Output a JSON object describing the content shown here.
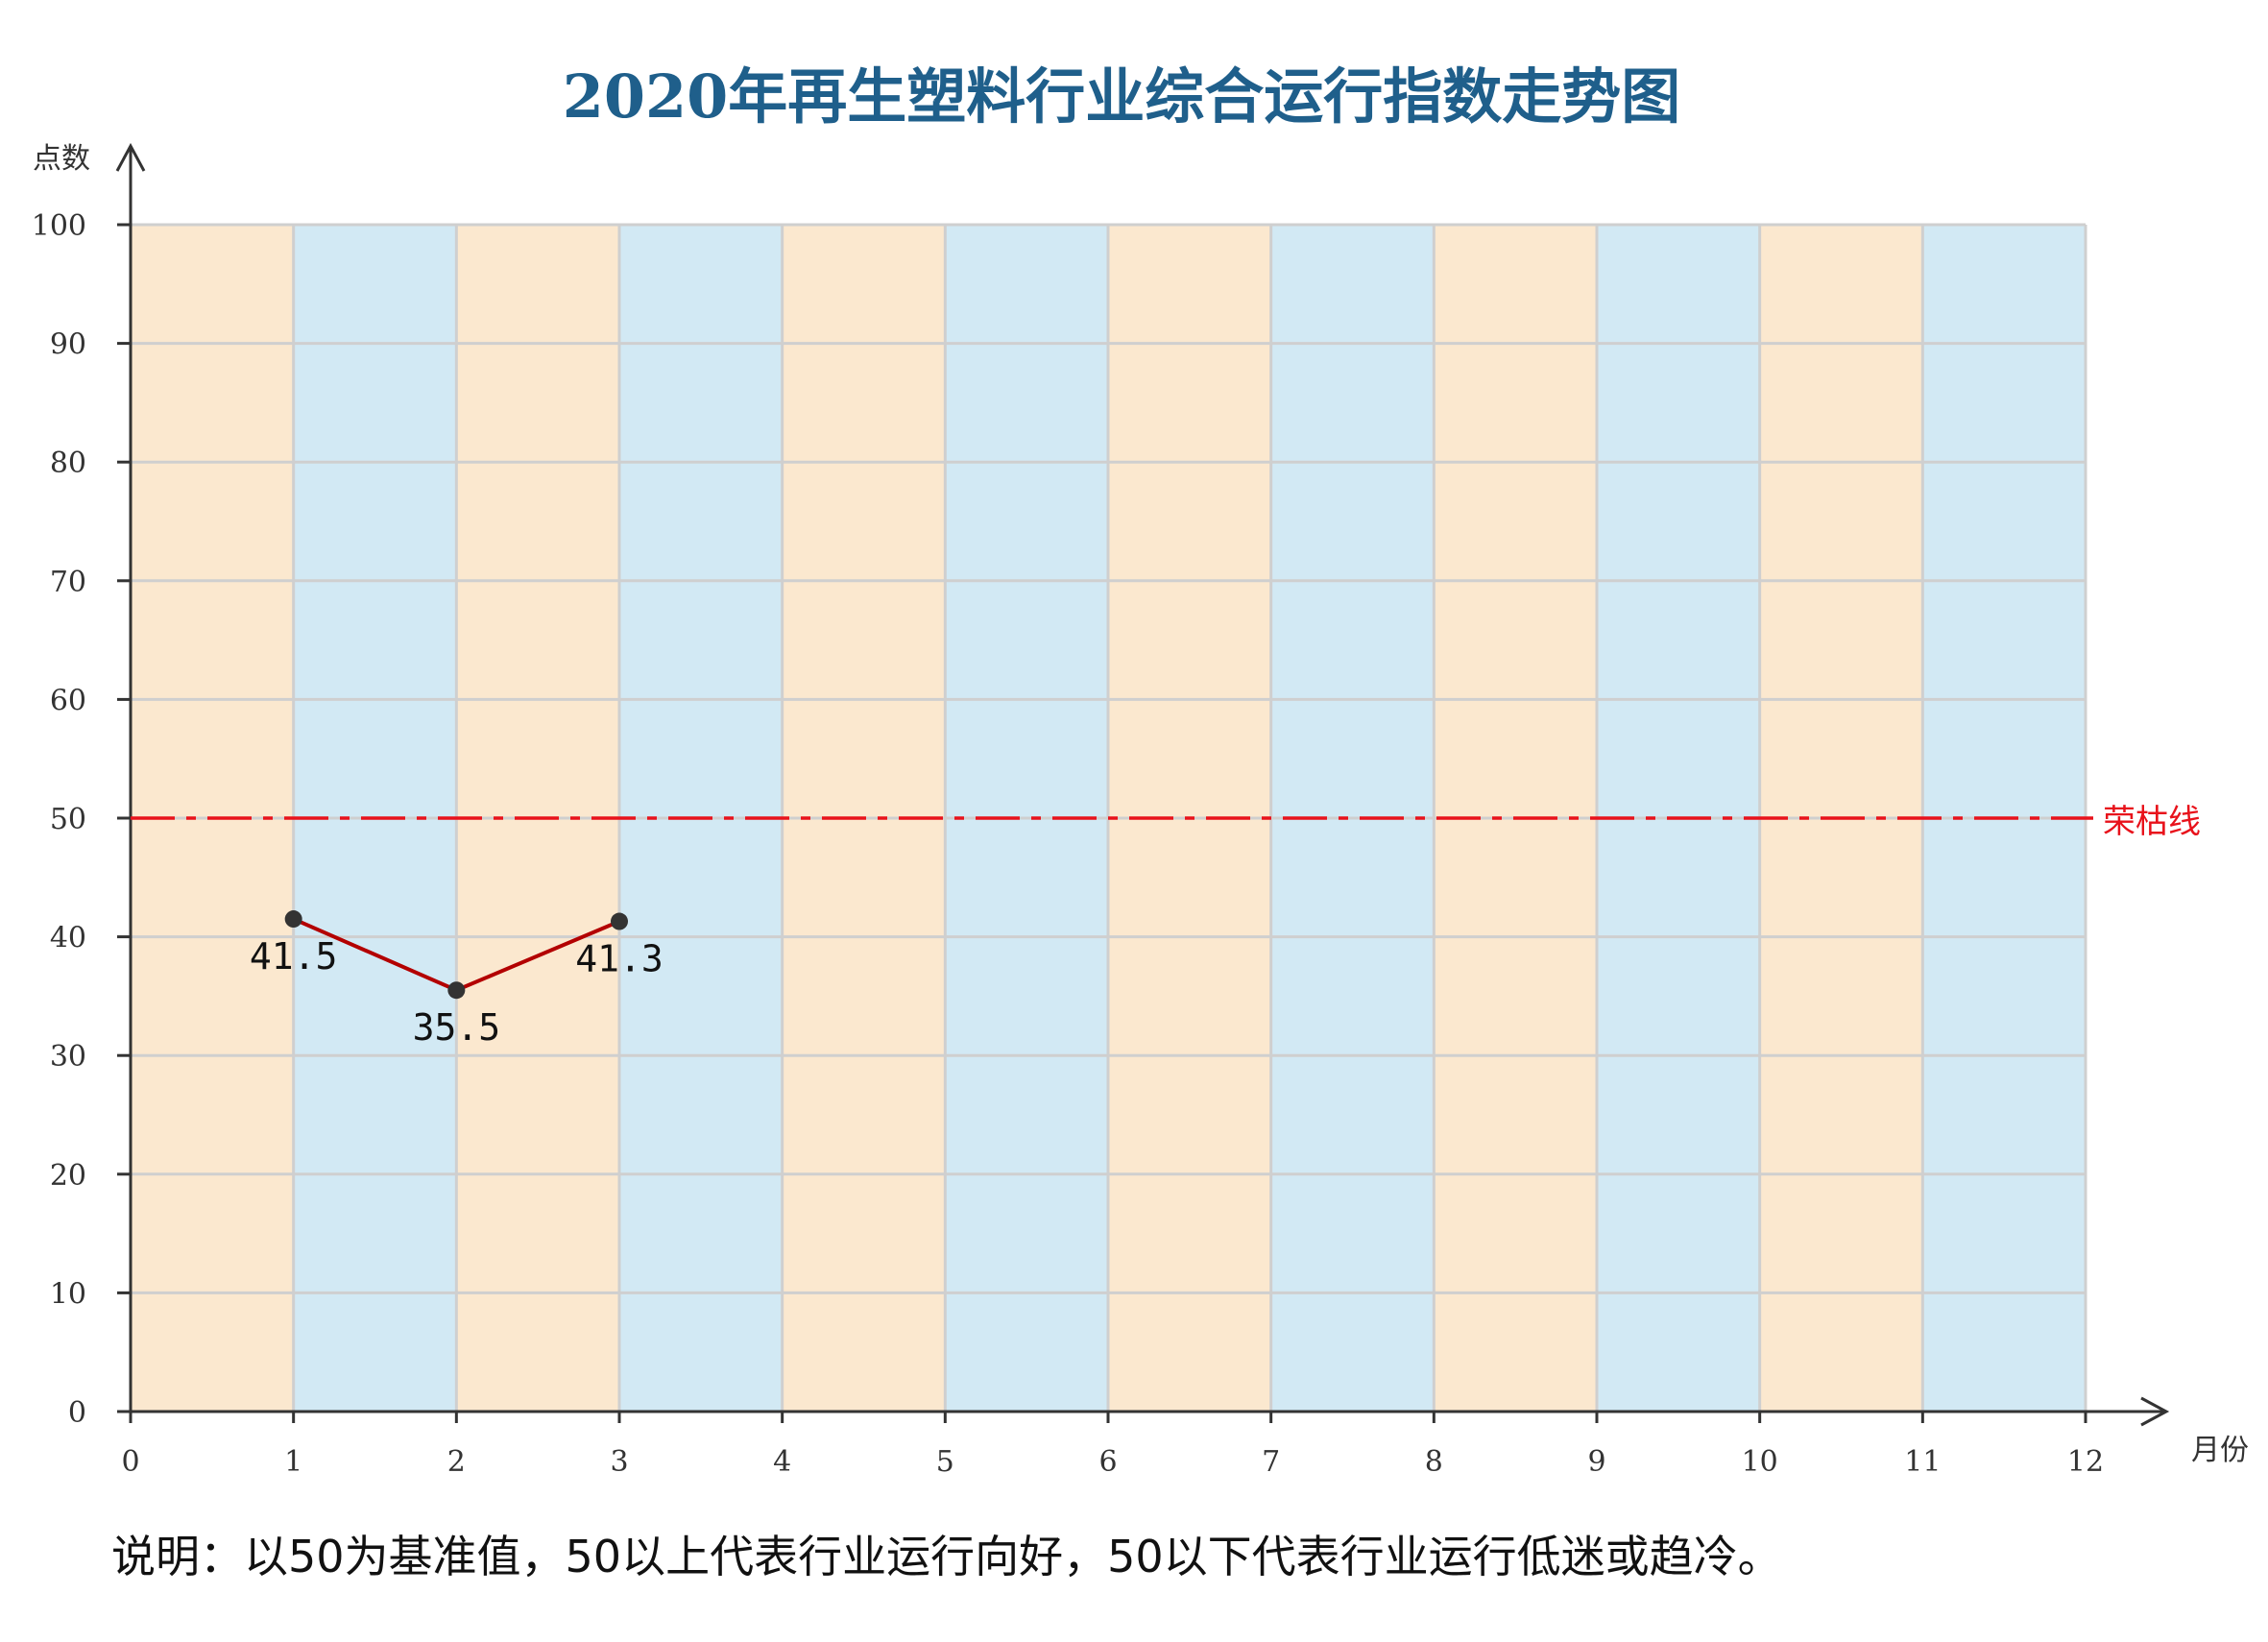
{
  "chart_data": {
    "type": "line",
    "title": "2020年再生塑料行业综合运行指数走势图",
    "xlabel": "月份",
    "ylabel": "点数",
    "xlim": [
      0,
      12
    ],
    "ylim": [
      0,
      100
    ],
    "x_ticks": [
      0,
      1,
      2,
      3,
      4,
      5,
      6,
      7,
      8,
      9,
      10,
      11,
      12
    ],
    "y_ticks": [
      0,
      10,
      20,
      30,
      40,
      50,
      60,
      70,
      80,
      90,
      100
    ],
    "grid": true,
    "background_bands": {
      "alternating_colors": [
        "#fbe8cf",
        "#d2e9f4"
      ],
      "band_width_months": 1
    },
    "series": [
      {
        "color": "#b30000",
        "marker_color": "#333333",
        "points": [
          {
            "x": 1,
            "y": 41.5,
            "label": "41.5"
          },
          {
            "x": 2,
            "y": 35.5,
            "label": "35.5"
          },
          {
            "x": 3,
            "y": 41.3,
            "label": "41.3"
          }
        ]
      }
    ],
    "reference_line": {
      "y": 50,
      "label": "荣枯线",
      "color": "#e8121b",
      "style": "dash-dot"
    },
    "note": "说明：以50为基准值，50以上代表行业运行向好，50以下代表行业运行低迷或趋冷。"
  },
  "colors": {
    "title": "#1f5f8b",
    "axis": "#333333",
    "grid": "#cfcfcf",
    "tick_text": "#333333"
  }
}
